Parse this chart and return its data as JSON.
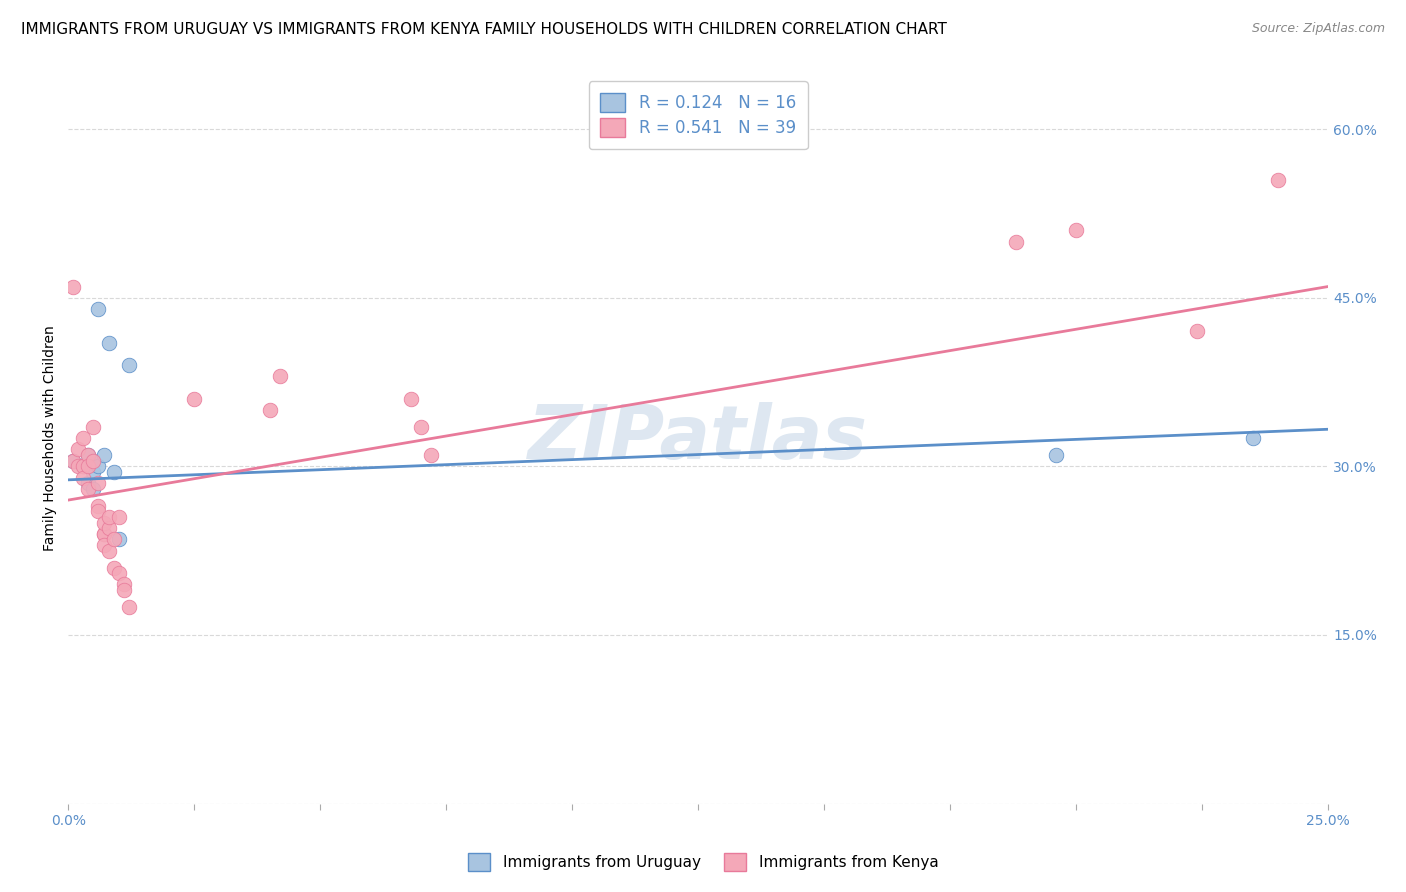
{
  "title": "IMMIGRANTS FROM URUGUAY VS IMMIGRANTS FROM KENYA FAMILY HOUSEHOLDS WITH CHILDREN CORRELATION CHART",
  "source": "Source: ZipAtlas.com",
  "ylabel": "Family Households with Children",
  "xlim": [
    0.0,
    0.25
  ],
  "ylim": [
    0.0,
    0.65
  ],
  "xticks": [
    0.0,
    0.025,
    0.05,
    0.075,
    0.1,
    0.125,
    0.15,
    0.175,
    0.2,
    0.225,
    0.25
  ],
  "yticks_right": [
    0.0,
    0.15,
    0.3,
    0.45,
    0.6
  ],
  "ytick_labels_right": [
    "",
    "15.0%",
    "30.0%",
    "45.0%",
    "60.0%"
  ],
  "xtick_labels": [
    "0.0%",
    "",
    "",
    "",
    "",
    "",
    "",
    "",
    "",
    "",
    "25.0%"
  ],
  "legend_r1": "0.124",
  "legend_n1": "16",
  "legend_r2": "0.541",
  "legend_n2": "39",
  "uruguay_color": "#a8c4e0",
  "kenya_color": "#f4a8b8",
  "uruguay_line_color": "#5b8fc9",
  "kenya_line_color": "#e87a9a",
  "watermark": "ZIPatlas",
  "watermark_color": "#c8d8e8",
  "background_color": "#ffffff",
  "grid_color": "#d9d9d9",
  "title_fontsize": 11,
  "axis_label_fontsize": 10,
  "tick_fontsize": 10,
  "legend_fontsize": 12,
  "tick_color": "#5b8fc9",
  "uruguay_points_x": [
    0.001,
    0.003,
    0.004,
    0.004,
    0.005,
    0.005,
    0.005,
    0.006,
    0.006,
    0.007,
    0.008,
    0.009,
    0.01,
    0.012,
    0.196,
    0.235
  ],
  "uruguay_points_y": [
    0.305,
    0.3,
    0.285,
    0.31,
    0.305,
    0.295,
    0.28,
    0.44,
    0.3,
    0.31,
    0.41,
    0.295,
    0.235,
    0.39,
    0.31,
    0.325
  ],
  "kenya_points_x": [
    0.001,
    0.001,
    0.002,
    0.002,
    0.003,
    0.003,
    0.003,
    0.004,
    0.004,
    0.004,
    0.005,
    0.005,
    0.006,
    0.006,
    0.006,
    0.007,
    0.007,
    0.007,
    0.007,
    0.008,
    0.008,
    0.008,
    0.009,
    0.009,
    0.01,
    0.01,
    0.011,
    0.011,
    0.012,
    0.025,
    0.04,
    0.042,
    0.068,
    0.07,
    0.072,
    0.188,
    0.2,
    0.224,
    0.24
  ],
  "kenya_points_y": [
    0.46,
    0.305,
    0.315,
    0.3,
    0.325,
    0.3,
    0.29,
    0.31,
    0.3,
    0.28,
    0.335,
    0.305,
    0.265,
    0.26,
    0.285,
    0.24,
    0.24,
    0.25,
    0.23,
    0.225,
    0.245,
    0.255,
    0.21,
    0.235,
    0.255,
    0.205,
    0.195,
    0.19,
    0.175,
    0.36,
    0.35,
    0.38,
    0.36,
    0.335,
    0.31,
    0.5,
    0.51,
    0.42,
    0.555
  ],
  "uruguay_trend_x": [
    0.0,
    0.25
  ],
  "uruguay_trend_y": [
    0.288,
    0.333
  ],
  "kenya_trend_x": [
    0.0,
    0.25
  ],
  "kenya_trend_y": [
    0.27,
    0.46
  ]
}
